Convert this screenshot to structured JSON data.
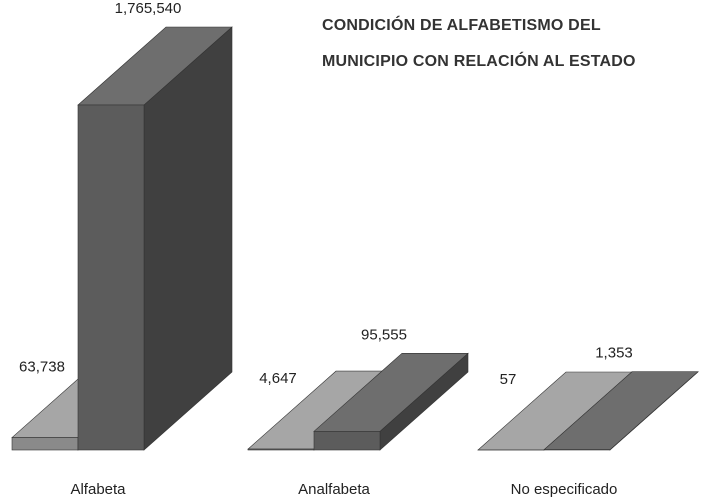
{
  "chart_data": {
    "type": "bar3d",
    "title": "CONDICIÓN DE ALFABETISMO DEL MUNICIPIO CON RELACIÓN AL ESTADO",
    "categories": [
      "Alfabeta",
      "Analfabeta",
      "No especificado"
    ],
    "series": [
      {
        "color": "#8a8a8a",
        "values": [
          63738,
          4647,
          57
        ],
        "value_labels": [
          "63,738",
          "4,647",
          "57"
        ]
      },
      {
        "color": "#5c5c5c",
        "values": [
          1765540,
          95555,
          1353
        ],
        "value_labels": [
          "1,765,540",
          "95,555",
          "1,353"
        ]
      }
    ]
  }
}
